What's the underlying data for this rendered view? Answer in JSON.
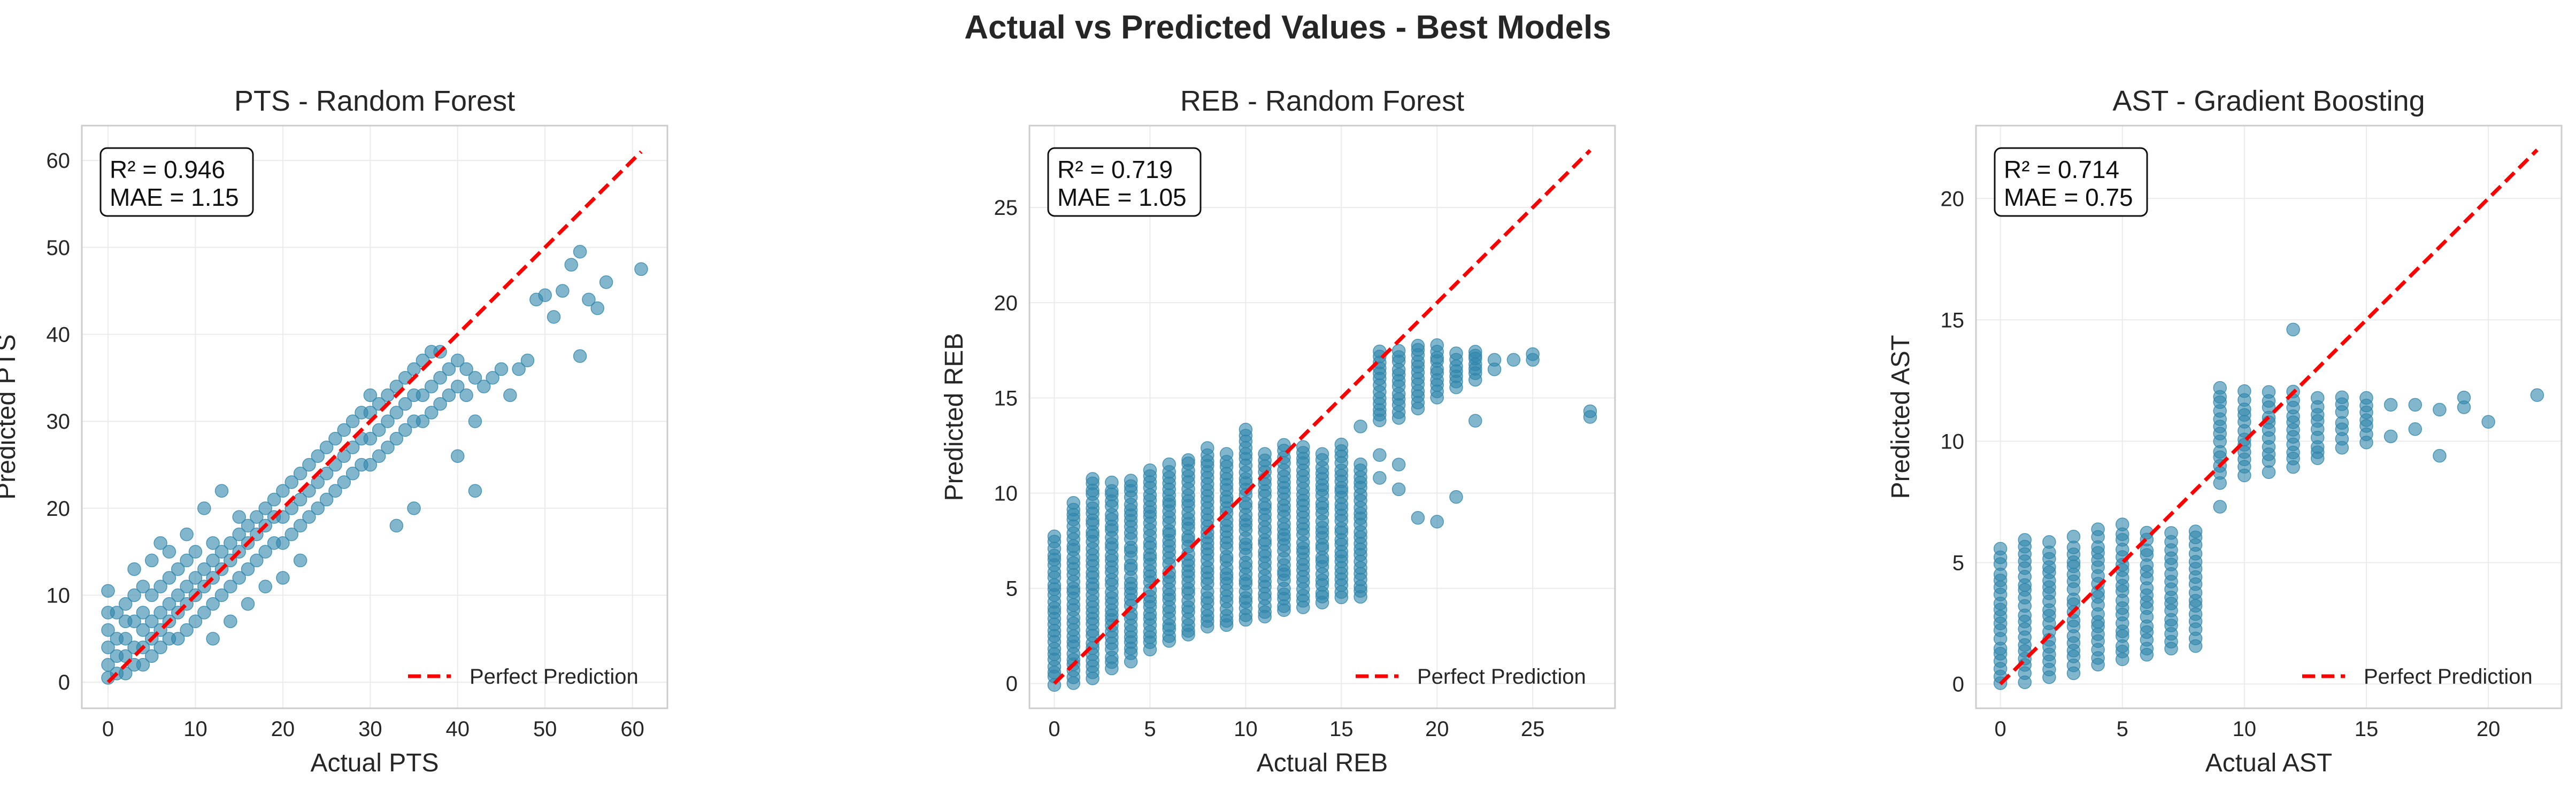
{
  "suptitle": "Actual vs Predicted Values - Best Models",
  "colors": {
    "points": "#2E86AB",
    "reference": "#FF0000",
    "grid": "#EBEBEB",
    "frame": "#CCCCCC"
  },
  "chart_data": [
    {
      "type": "scatter",
      "title": "PTS - Random Forest",
      "xlabel": "Actual PTS",
      "ylabel": "Predicted PTS",
      "xlim": [
        -3,
        64
      ],
      "ylim": [
        -3,
        64
      ],
      "xticks": [
        0,
        10,
        20,
        30,
        40,
        50,
        60
      ],
      "yticks": [
        0,
        10,
        20,
        30,
        40,
        50,
        60
      ],
      "grid": true,
      "stats": [
        "R² = 0.946",
        "MAE = 1.15"
      ],
      "legend": {
        "label": "Perfect Prediction",
        "placement": "lower-right"
      },
      "reference_line": [
        [
          0,
          0
        ],
        [
          61,
          61
        ]
      ],
      "points": [
        [
          0,
          0.5
        ],
        [
          0,
          2
        ],
        [
          0,
          4
        ],
        [
          0,
          6
        ],
        [
          0,
          8
        ],
        [
          0,
          10.5
        ],
        [
          1,
          1
        ],
        [
          1,
          3
        ],
        [
          1,
          5
        ],
        [
          1,
          8
        ],
        [
          2,
          1
        ],
        [
          2,
          3
        ],
        [
          2,
          5
        ],
        [
          2,
          7
        ],
        [
          2,
          9
        ],
        [
          3,
          2
        ],
        [
          3,
          4
        ],
        [
          3,
          7
        ],
        [
          3,
          10
        ],
        [
          4,
          2
        ],
        [
          4,
          4
        ],
        [
          4,
          6
        ],
        [
          4,
          8
        ],
        [
          4,
          11
        ],
        [
          5,
          3
        ],
        [
          5,
          5
        ],
        [
          5,
          7
        ],
        [
          5,
          10
        ],
        [
          6,
          4
        ],
        [
          6,
          6
        ],
        [
          6,
          8
        ],
        [
          6,
          11
        ],
        [
          7,
          5
        ],
        [
          7,
          7
        ],
        [
          7,
          9
        ],
        [
          7,
          12
        ],
        [
          8,
          5
        ],
        [
          8,
          8
        ],
        [
          8,
          10
        ],
        [
          8,
          13
        ],
        [
          9,
          6
        ],
        [
          9,
          9
        ],
        [
          9,
          11
        ],
        [
          9,
          14
        ],
        [
          10,
          7
        ],
        [
          10,
          10
        ],
        [
          10,
          12
        ],
        [
          10,
          15
        ],
        [
          11,
          8
        ],
        [
          11,
          11
        ],
        [
          11,
          13
        ],
        [
          12,
          9
        ],
        [
          12,
          12
        ],
        [
          12,
          14
        ],
        [
          12,
          16
        ],
        [
          13,
          10
        ],
        [
          13,
          13
        ],
        [
          13,
          15
        ],
        [
          14,
          11
        ],
        [
          14,
          14
        ],
        [
          14,
          16
        ],
        [
          15,
          12
        ],
        [
          15,
          15
        ],
        [
          15,
          17
        ],
        [
          15,
          19
        ],
        [
          16,
          13
        ],
        [
          16,
          16
        ],
        [
          16,
          18
        ],
        [
          17,
          14
        ],
        [
          17,
          17
        ],
        [
          17,
          19
        ],
        [
          18,
          15
        ],
        [
          18,
          18
        ],
        [
          18,
          20
        ],
        [
          19,
          16
        ],
        [
          19,
          19
        ],
        [
          19,
          21
        ],
        [
          20,
          16
        ],
        [
          20,
          19
        ],
        [
          20,
          22
        ],
        [
          21,
          17
        ],
        [
          21,
          20
        ],
        [
          21,
          23
        ],
        [
          22,
          18
        ],
        [
          22,
          21
        ],
        [
          22,
          24
        ],
        [
          23,
          19
        ],
        [
          23,
          22
        ],
        [
          23,
          25
        ],
        [
          24,
          20
        ],
        [
          24,
          23
        ],
        [
          24,
          26
        ],
        [
          25,
          21
        ],
        [
          25,
          24
        ],
        [
          25,
          27
        ],
        [
          26,
          22
        ],
        [
          26,
          25
        ],
        [
          26,
          28
        ],
        [
          27,
          23
        ],
        [
          27,
          26
        ],
        [
          27,
          29
        ],
        [
          28,
          24
        ],
        [
          28,
          27
        ],
        [
          28,
          30
        ],
        [
          29,
          25
        ],
        [
          29,
          28
        ],
        [
          29,
          31
        ],
        [
          30,
          25
        ],
        [
          30,
          28
        ],
        [
          30,
          31
        ],
        [
          30,
          33
        ],
        [
          31,
          26
        ],
        [
          31,
          29
        ],
        [
          31,
          32
        ],
        [
          32,
          27
        ],
        [
          32,
          30
        ],
        [
          32,
          33
        ],
        [
          33,
          28
        ],
        [
          33,
          31
        ],
        [
          33,
          34
        ],
        [
          34,
          29
        ],
        [
          34,
          32
        ],
        [
          34,
          35
        ],
        [
          35,
          30
        ],
        [
          35,
          33
        ],
        [
          35,
          36
        ],
        [
          36,
          30
        ],
        [
          36,
          33
        ],
        [
          36,
          37
        ],
        [
          37,
          31
        ],
        [
          37,
          34
        ],
        [
          37,
          38
        ],
        [
          38,
          32
        ],
        [
          38,
          35
        ],
        [
          38,
          38
        ],
        [
          39,
          33
        ],
        [
          39,
          36
        ],
        [
          40,
          34
        ],
        [
          40,
          37
        ],
        [
          41,
          33
        ],
        [
          41,
          36
        ],
        [
          42,
          30
        ],
        [
          42,
          35
        ],
        [
          43,
          34
        ],
        [
          44,
          35
        ],
        [
          45,
          36
        ],
        [
          46,
          33
        ],
        [
          47,
          36
        ],
        [
          48,
          37
        ],
        [
          49,
          44
        ],
        [
          50,
          44.5
        ],
        [
          51,
          42
        ],
        [
          52,
          45
        ],
        [
          53,
          48
        ],
        [
          54,
          49.5
        ],
        [
          54,
          37.5
        ],
        [
          55,
          44
        ],
        [
          56,
          43
        ],
        [
          57,
          46
        ],
        [
          61,
          47.5
        ],
        [
          5,
          14
        ],
        [
          7,
          15
        ],
        [
          9,
          17
        ],
        [
          11,
          20
        ],
        [
          13,
          22
        ],
        [
          12,
          5
        ],
        [
          14,
          7
        ],
        [
          16,
          9
        ],
        [
          18,
          11
        ],
        [
          20,
          12
        ],
        [
          22,
          14
        ],
        [
          3,
          13
        ],
        [
          6,
          16
        ],
        [
          33,
          18
        ],
        [
          35,
          20
        ],
        [
          40,
          26
        ],
        [
          42,
          22
        ]
      ]
    },
    {
      "type": "scatter",
      "title": "REB - Random Forest",
      "xlabel": "Actual REB",
      "ylabel": "Predicted REB",
      "xlim": [
        -1.3,
        29.3
      ],
      "ylim": [
        -1.3,
        29.3
      ],
      "xticks": [
        0,
        5,
        10,
        15,
        20,
        25
      ],
      "yticks": [
        0,
        5,
        10,
        15,
        20,
        25
      ],
      "grid": true,
      "stats": [
        "R² = 0.719",
        "MAE = 1.05"
      ],
      "legend": {
        "label": "Perfect Prediction",
        "placement": "lower-right"
      },
      "reference_line": [
        [
          0,
          0
        ],
        [
          28,
          28
        ]
      ],
      "columns": [
        {
          "x": 0,
          "min": 0,
          "max": 7.7
        },
        {
          "x": 1,
          "min": 0,
          "max": 9.5
        },
        {
          "x": 2,
          "min": 0.3,
          "max": 10.8
        },
        {
          "x": 3,
          "min": 0.8,
          "max": 10.5
        },
        {
          "x": 4,
          "min": 1.2,
          "max": 10.7
        },
        {
          "x": 5,
          "min": 1.8,
          "max": 11.2
        },
        {
          "x": 6,
          "min": 2.2,
          "max": 11.5
        },
        {
          "x": 7,
          "min": 2.5,
          "max": 11.8
        },
        {
          "x": 8,
          "min": 3.0,
          "max": 12.3
        },
        {
          "x": 9,
          "min": 3.0,
          "max": 12.0
        },
        {
          "x": 10,
          "min": 3.3,
          "max": 13.3
        },
        {
          "x": 11,
          "min": 3.5,
          "max": 12.0
        },
        {
          "x": 12,
          "min": 3.8,
          "max": 12.5
        },
        {
          "x": 13,
          "min": 4.0,
          "max": 12.5
        },
        {
          "x": 14,
          "min": 4.2,
          "max": 12.0
        },
        {
          "x": 15,
          "min": 4.5,
          "max": 12.5
        },
        {
          "x": 16,
          "min": 4.5,
          "max": 11.5
        },
        {
          "x": 17,
          "min": 13.8,
          "max": 17.5
        },
        {
          "x": 18,
          "min": 14.0,
          "max": 17.5
        },
        {
          "x": 19,
          "min": 14.5,
          "max": 17.8
        },
        {
          "x": 20,
          "min": 15.0,
          "max": 17.8
        },
        {
          "x": 21,
          "min": 15.5,
          "max": 17.3
        },
        {
          "x": 22,
          "min": 16.0,
          "max": 17.5
        }
      ],
      "points": [
        [
          17,
          10.8
        ],
        [
          18,
          10.2
        ],
        [
          19,
          8.7
        ],
        [
          20,
          8.5
        ],
        [
          21,
          9.8
        ],
        [
          22,
          13.8
        ],
        [
          23,
          16.5
        ],
        [
          23,
          17
        ],
        [
          24,
          17
        ],
        [
          25,
          17.3
        ],
        [
          25,
          17
        ],
        [
          28,
          14
        ],
        [
          28,
          14.3
        ],
        [
          16,
          13.5
        ],
        [
          17,
          12
        ],
        [
          18,
          11.5
        ]
      ]
    },
    {
      "type": "scatter",
      "title": "AST - Gradient Boosting",
      "xlabel": "Actual AST",
      "ylabel": "Predicted AST",
      "xlim": [
        -1.0,
        23.0
      ],
      "ylim": [
        -1.0,
        23.0
      ],
      "xticks": [
        0,
        5,
        10,
        15,
        20
      ],
      "yticks": [
        0,
        5,
        10,
        15,
        20
      ],
      "grid": true,
      "stats": [
        "R² = 0.714",
        "MAE = 0.75"
      ],
      "legend": {
        "label": "Perfect Prediction",
        "placement": "lower-right"
      },
      "reference_line": [
        [
          0,
          0
        ],
        [
          22,
          22
        ]
      ],
      "columns": [
        {
          "x": 0,
          "min": 0,
          "max": 5.5
        },
        {
          "x": 1,
          "min": 0.1,
          "max": 6.0
        },
        {
          "x": 2,
          "min": 0.3,
          "max": 5.8
        },
        {
          "x": 3,
          "min": 0.5,
          "max": 6.0
        },
        {
          "x": 4,
          "min": 0.8,
          "max": 6.3
        },
        {
          "x": 5,
          "min": 1.0,
          "max": 6.5
        },
        {
          "x": 6,
          "min": 1.2,
          "max": 6.2
        },
        {
          "x": 7,
          "min": 1.4,
          "max": 6.2
        },
        {
          "x": 8,
          "min": 1.6,
          "max": 6.3
        },
        {
          "x": 9,
          "min": 8.3,
          "max": 12.2
        },
        {
          "x": 10,
          "min": 8.6,
          "max": 12.0
        },
        {
          "x": 11,
          "min": 8.8,
          "max": 12.0
        },
        {
          "x": 12,
          "min": 9.0,
          "max": 12.0
        },
        {
          "x": 13,
          "min": 9.5,
          "max": 11.8
        },
        {
          "x": 14,
          "min": 9.8,
          "max": 11.8
        },
        {
          "x": 15,
          "min": 10.0,
          "max": 11.8
        }
      ],
      "points": [
        [
          9,
          7.3
        ],
        [
          12,
          14.6
        ],
        [
          13,
          9.3
        ],
        [
          16,
          10.2
        ],
        [
          16,
          11.5
        ],
        [
          17,
          10.5
        ],
        [
          17,
          11.5
        ],
        [
          18,
          9.4
        ],
        [
          18,
          11.3
        ],
        [
          19,
          11.4
        ],
        [
          19,
          11.8
        ],
        [
          20,
          10.8
        ],
        [
          22,
          11.9
        ]
      ]
    }
  ]
}
